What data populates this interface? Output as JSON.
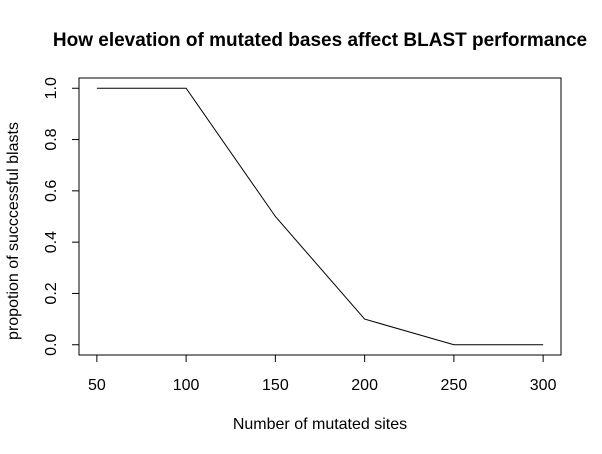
{
  "chart_data": {
    "type": "line",
    "title": "How elevation of mutated bases affect BLAST performance",
    "xlabel": "Number of mutated sites",
    "ylabel": "propotion of succcessful blasts",
    "x": [
      50,
      100,
      150,
      200,
      250,
      300
    ],
    "series": [
      {
        "values": [
          1.0,
          1.0,
          0.5,
          0.1,
          0.0,
          0.0
        ],
        "color": "#000000"
      }
    ],
    "xlim": [
      40,
      310
    ],
    "ylim": [
      -0.04,
      1.04
    ],
    "x_ticks": [
      50,
      100,
      150,
      200,
      250,
      300
    ],
    "y_ticks": [
      0.0,
      0.2,
      0.4,
      0.6,
      0.8,
      1.0
    ],
    "x_tick_labels": [
      "50",
      "100",
      "150",
      "200",
      "250",
      "300"
    ],
    "y_tick_labels": [
      "0.0",
      "0.2",
      "0.4",
      "0.6",
      "0.8",
      "1.0"
    ],
    "grid": false,
    "legend": "none"
  }
}
